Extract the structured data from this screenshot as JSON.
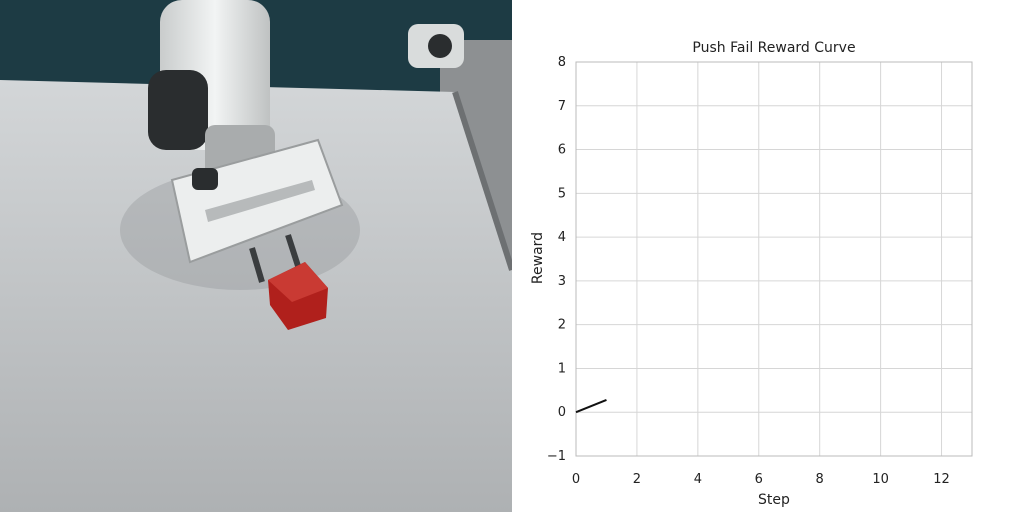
{
  "chart_data": {
    "type": "line",
    "title": "Push Fail Reward Curve",
    "xlabel": "Step",
    "ylabel": "Reward",
    "xlim": [
      0,
      13
    ],
    "ylim": [
      -1,
      8
    ],
    "xticks": [
      0,
      2,
      4,
      6,
      8,
      10,
      12
    ],
    "yticks": [
      -1,
      0,
      1,
      2,
      3,
      4,
      5,
      6,
      7,
      8
    ],
    "grid": true,
    "series": [
      {
        "x": [
          0,
          1
        ],
        "y": [
          0,
          0.28
        ],
        "color": "#111111"
      }
    ]
  },
  "photo": {
    "cube_color": "#b0201c",
    "robot_color": "#e9ecec",
    "table_color": "#c9ccce"
  }
}
